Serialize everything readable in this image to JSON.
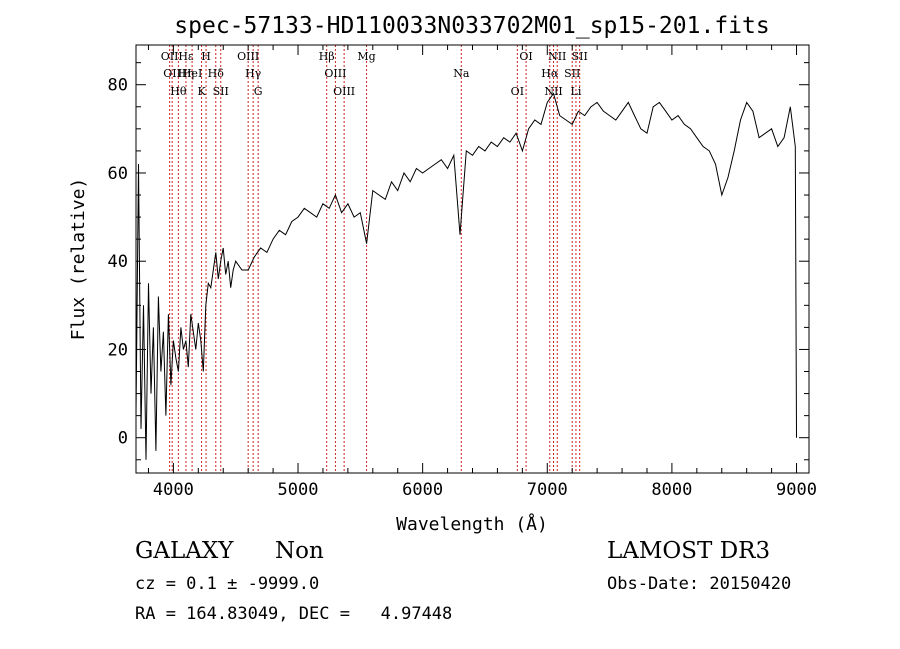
{
  "chart_data": {
    "type": "line",
    "title": "spec-57133-HD110033N033702M01_sp15-201.fits",
    "xlabel": "Wavelength (Å)",
    "ylabel": "Flux (relative)",
    "xlim": [
      3700,
      9100
    ],
    "ylim": [
      -8,
      89
    ],
    "x_ticks": [
      4000,
      5000,
      6000,
      7000,
      8000,
      9000
    ],
    "y_ticks": [
      0,
      20,
      40,
      60,
      80
    ],
    "x_tick_labels": [
      "4000",
      "5000",
      "6000",
      "7000",
      "8000",
      "9000"
    ],
    "y_tick_labels": [
      "0",
      "20",
      "40",
      "60",
      "80"
    ],
    "grid": false,
    "line_color": "#000000",
    "marker_color": "#cc2222",
    "series": [
      {
        "x": [
          3700,
          3720,
          3740,
          3760,
          3780,
          3800,
          3820,
          3840,
          3860,
          3880,
          3900,
          3920,
          3940,
          3960,
          3980,
          4000,
          4020,
          4040,
          4060,
          4080,
          4100,
          4120,
          4140,
          4160,
          4180,
          4200,
          4220,
          4240,
          4260,
          4280,
          4300,
          4320,
          4340,
          4360,
          4380,
          4400,
          4420,
          4440,
          4460,
          4480,
          4500,
          4550,
          4600,
          4650,
          4700,
          4750,
          4800,
          4850,
          4900,
          4950,
          5000,
          5050,
          5100,
          5150,
          5200,
          5250,
          5300,
          5350,
          5400,
          5450,
          5500,
          5550,
          5600,
          5650,
          5700,
          5750,
          5800,
          5850,
          5900,
          5950,
          6000,
          6050,
          6100,
          6150,
          6200,
          6250,
          6300,
          6350,
          6400,
          6450,
          6500,
          6550,
          6600,
          6650,
          6700,
          6750,
          6800,
          6850,
          6900,
          6950,
          7000,
          7050,
          7100,
          7150,
          7200,
          7250,
          7300,
          7350,
          7400,
          7450,
          7500,
          7550,
          7600,
          7650,
          7700,
          7750,
          7800,
          7850,
          7900,
          7950,
          8000,
          8050,
          8100,
          8150,
          8200,
          8250,
          8300,
          8350,
          8400,
          8450,
          8500,
          8550,
          8600,
          8650,
          8700,
          8750,
          8800,
          8850,
          8900,
          8950,
          8990,
          9000
        ],
        "y": [
          5,
          62,
          2,
          30,
          -5,
          35,
          10,
          25,
          -3,
          32,
          15,
          24,
          5,
          28,
          12,
          22,
          18,
          15,
          25,
          20,
          22,
          16,
          28,
          24,
          20,
          26,
          22,
          15,
          30,
          35,
          34,
          38,
          42,
          36,
          40,
          43,
          37,
          40,
          34,
          38,
          40,
          38,
          38,
          41,
          43,
          42,
          45,
          47,
          46,
          49,
          50,
          52,
          51,
          50,
          53,
          52,
          55,
          51,
          53,
          50,
          51,
          44,
          56,
          55,
          54,
          58,
          56,
          60,
          58,
          61,
          60,
          61,
          62,
          63,
          61,
          64,
          46,
          65,
          64,
          66,
          65,
          67,
          66,
          68,
          67,
          69,
          65,
          70,
          72,
          71,
          76,
          78,
          73,
          72,
          71,
          74,
          73,
          75,
          76,
          74,
          73,
          72,
          74,
          76,
          73,
          70,
          69,
          75,
          76,
          74,
          72,
          73,
          71,
          70,
          68,
          66,
          65,
          62,
          55,
          59,
          65,
          72,
          76,
          74,
          68,
          69,
          70,
          66,
          68,
          75,
          66,
          0
        ],
        "note_y_range": "sampled trace"
      }
    ],
    "line_markers": [
      {
        "wavelength": 3970,
        "labels": [
          "OII"
        ]
      },
      {
        "wavelength": 3990,
        "labels": [
          "OII"
        ]
      },
      {
        "wavelength": 4040,
        "labels": [
          "Hθ"
        ]
      },
      {
        "wavelength": 4101,
        "labels": [
          "Hε",
          "Hη"
        ]
      },
      {
        "wavelength": 4150,
        "labels": [
          "HeI"
        ]
      },
      {
        "wavelength": 4226,
        "labels": [
          "K"
        ]
      },
      {
        "wavelength": 4262,
        "labels": [
          "H"
        ]
      },
      {
        "wavelength": 4340,
        "labels": [
          "Hδ"
        ]
      },
      {
        "wavelength": 4380,
        "labels": [
          "SII"
        ]
      },
      {
        "wavelength": 4600,
        "labels": [
          "OIII"
        ]
      },
      {
        "wavelength": 4640,
        "labels": [
          "Hγ"
        ]
      },
      {
        "wavelength": 4680,
        "labels": [
          "G"
        ]
      },
      {
        "wavelength": 5230,
        "labels": [
          "Hβ"
        ]
      },
      {
        "wavelength": 5300,
        "labels": [
          "OIII"
        ]
      },
      {
        "wavelength": 5370,
        "labels": [
          "OIII"
        ]
      },
      {
        "wavelength": 5550,
        "labels": [
          "Mg"
        ]
      },
      {
        "wavelength": 6310,
        "labels": [
          "Na"
        ]
      },
      {
        "wavelength": 6760,
        "labels": [
          "OI"
        ]
      },
      {
        "wavelength": 6830,
        "labels": [
          "OI"
        ]
      },
      {
        "wavelength": 7020,
        "labels": [
          "Hα"
        ]
      },
      {
        "wavelength": 7050,
        "labels": [
          "NII"
        ]
      },
      {
        "wavelength": 7080,
        "labels": [
          "NII"
        ]
      },
      {
        "wavelength": 7200,
        "labels": [
          "SII"
        ]
      },
      {
        "wavelength": 7230,
        "labels": [
          "Li"
        ]
      },
      {
        "wavelength": 7260,
        "labels": [
          "SII"
        ]
      }
    ]
  },
  "info": {
    "object_class": "GALAXY",
    "subclass": "Non",
    "survey": "LAMOST DR3",
    "cz_line": "cz = 0.1 ± -9999.0",
    "obs_date_line": "Obs-Date: 20150420",
    "radec_line": "RA = 164.83049, DEC =   4.97448"
  }
}
